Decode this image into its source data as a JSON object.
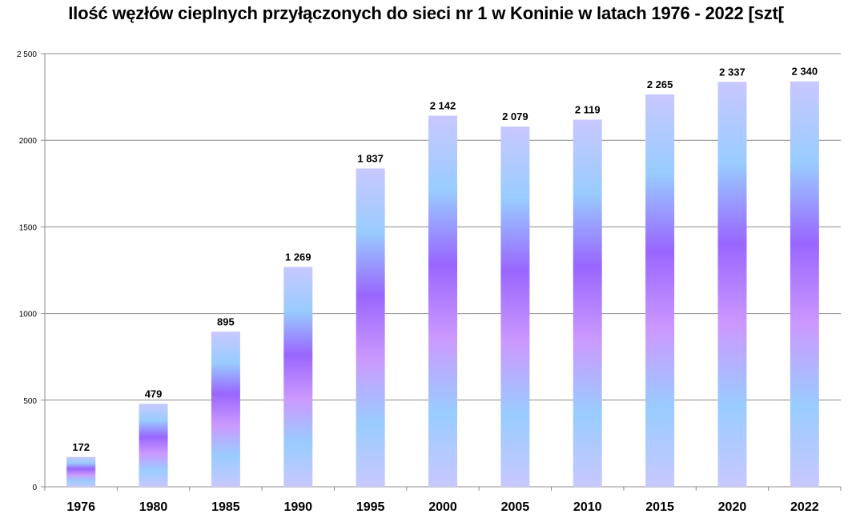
{
  "chart_data": {
    "type": "bar",
    "title": "Ilość węzłów cieplnych przyłączonych do sieci nr 1 w Koninie w latach 1976 - 2022 [szt[",
    "xlabel": "",
    "ylabel": "",
    "categories": [
      "1976",
      "1980",
      "1985",
      "1990",
      "1995",
      "2000",
      "2005",
      "2010",
      "2015",
      "2020",
      "2022"
    ],
    "values": [
      172,
      479,
      895,
      1269,
      1837,
      2142,
      2079,
      2119,
      2265,
      2337,
      2340
    ],
    "value_labels": [
      "172",
      "479",
      "895",
      "1 269",
      "1 837",
      "2 142",
      "2 079",
      "2 119",
      "2 265",
      "2 337",
      "2 340"
    ],
    "ylim": [
      0,
      2500
    ],
    "yticks": [
      0,
      500,
      1000,
      1500,
      2000,
      2500
    ],
    "ytick_labels": [
      "0",
      "500",
      "1000",
      "1500",
      "2000",
      "2 500"
    ],
    "grid": true,
    "legend": "none",
    "bar_gradient": [
      "#c8c8ff",
      "#99ccff",
      "#9966ff",
      "#cc99ff",
      "#99ccff",
      "#c8c8ff"
    ]
  }
}
